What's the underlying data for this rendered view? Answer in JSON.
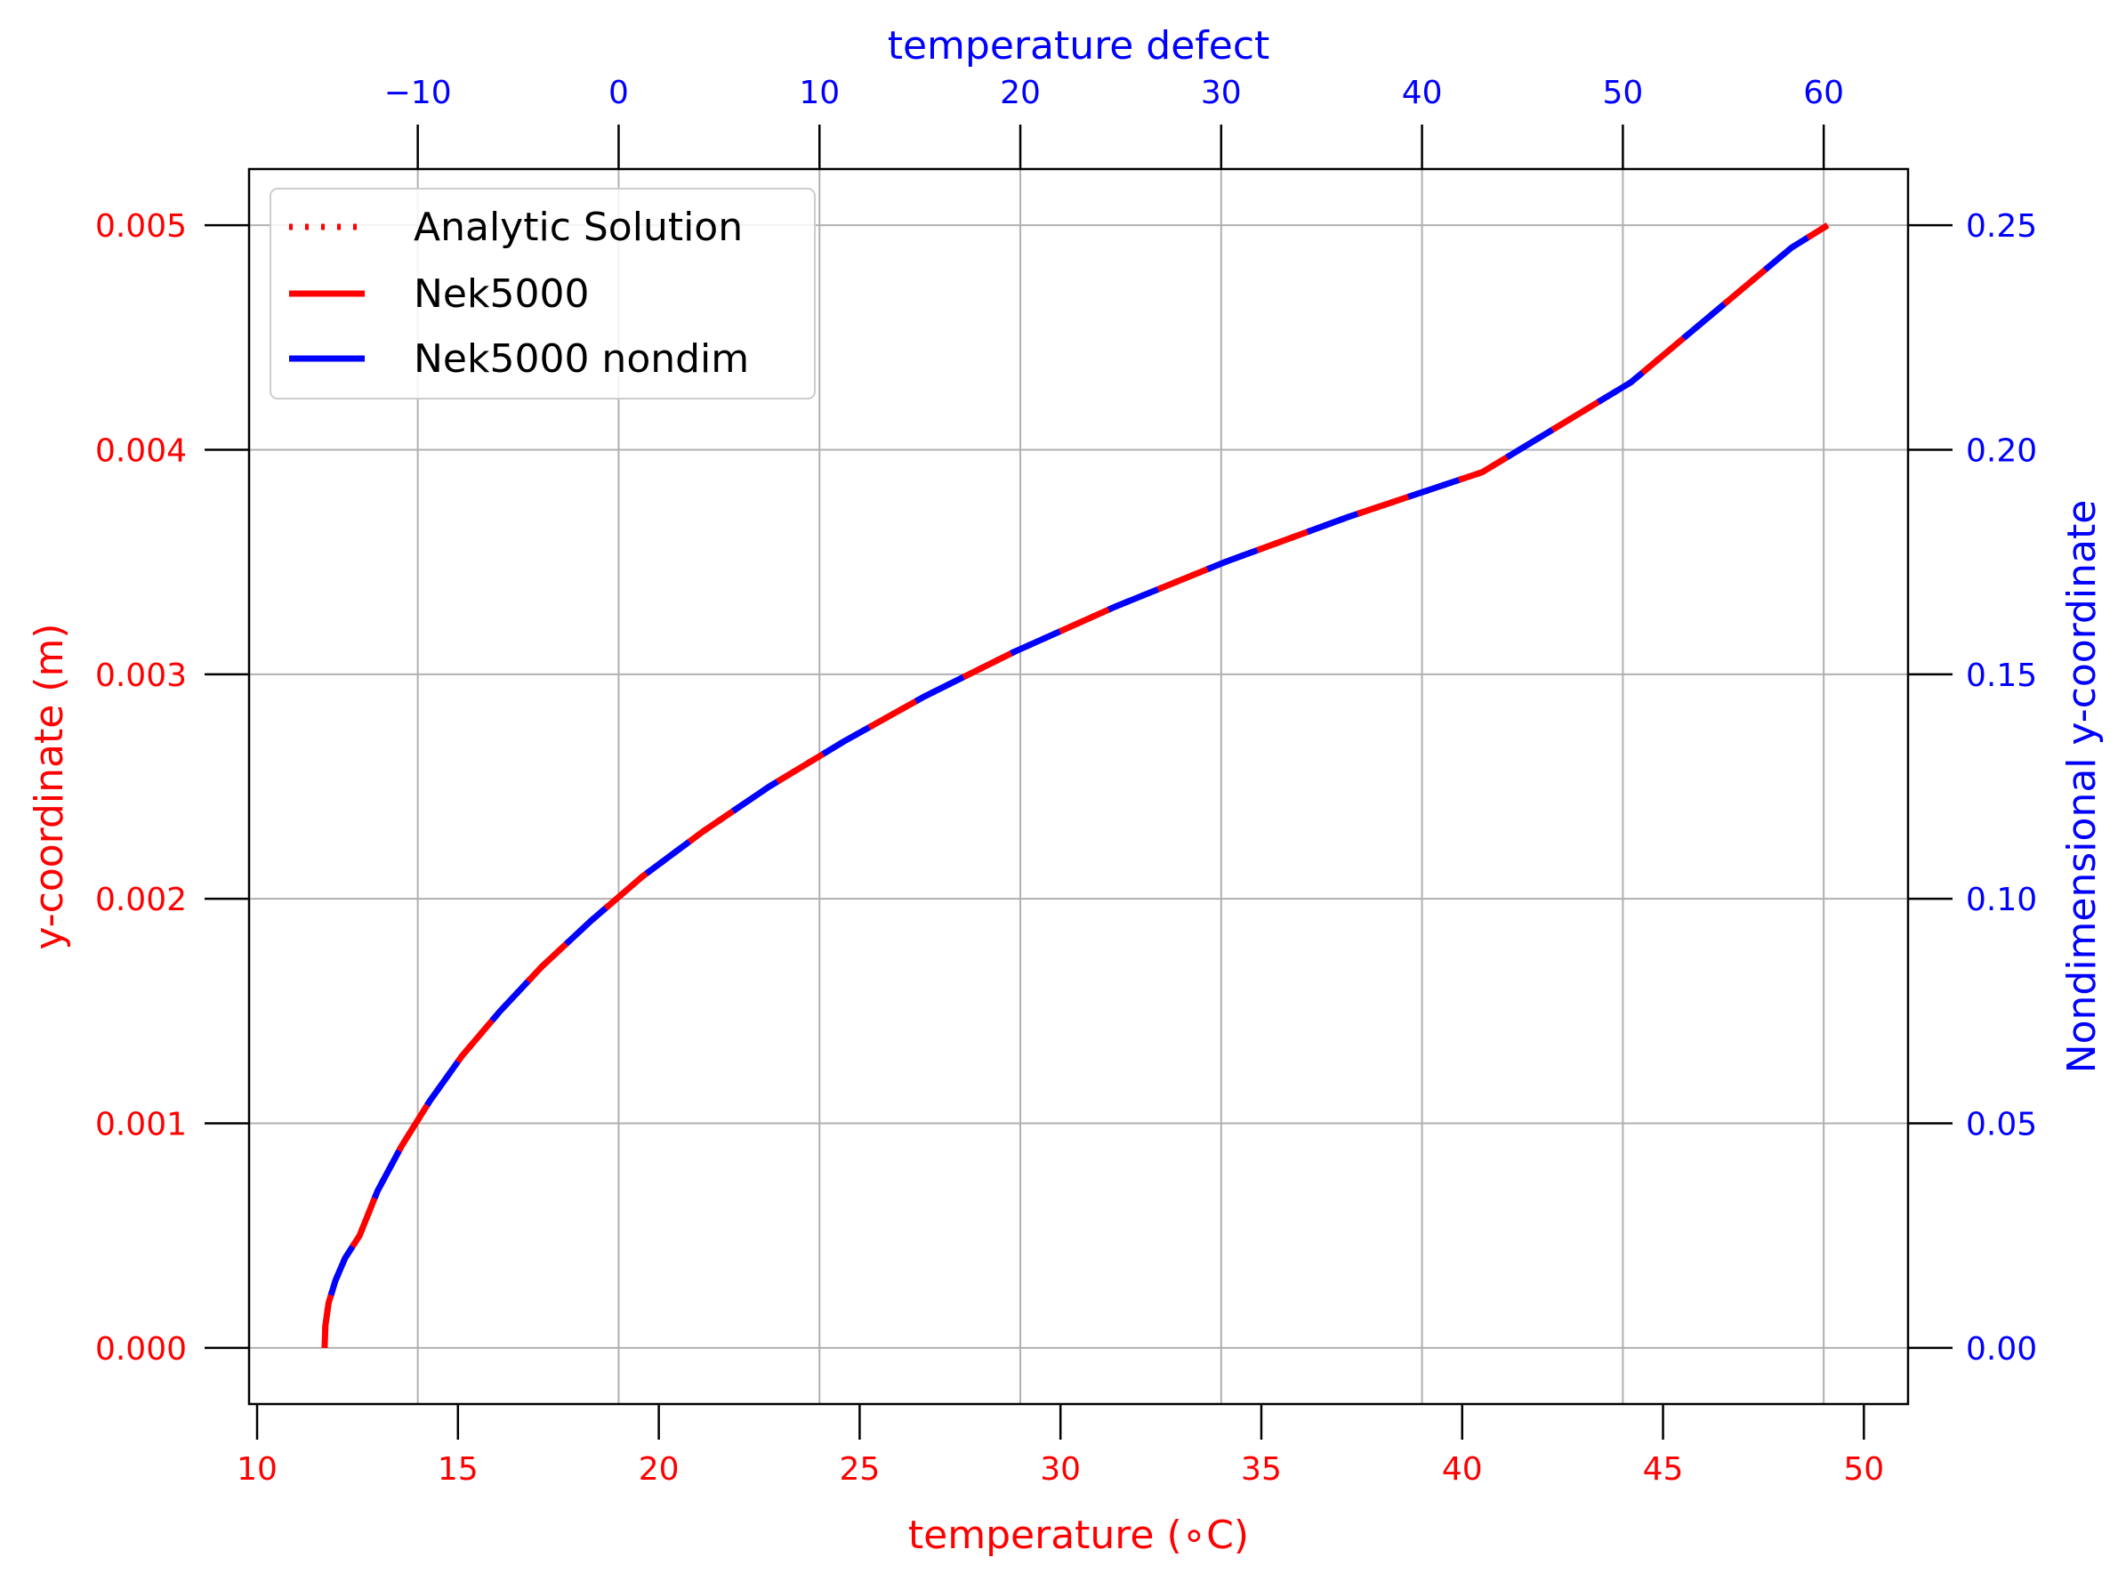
{
  "chart_data": {
    "type": "line",
    "title": "",
    "xlabel": "temperature ($^\\circ$C)",
    "xlabel_display": "temperature (∘C)",
    "ylabel": "y-coordinate (m)",
    "x2label": "temperature defect",
    "y2label": "Nondimensional y-coordinate",
    "xlim": [
      9.8,
      51.1
    ],
    "ylim": [
      -0.00025,
      0.00525
    ],
    "x2lim": [
      -18.4,
      64.2
    ],
    "y2lim": [
      -0.0125,
      0.2625
    ],
    "xticks": [
      10,
      15,
      20,
      25,
      30,
      35,
      40,
      45,
      50
    ],
    "xtick_labels": [
      "10",
      "15",
      "20",
      "25",
      "30",
      "35",
      "40",
      "45",
      "50"
    ],
    "yticks": [
      0.0,
      0.001,
      0.002,
      0.003,
      0.004,
      0.005
    ],
    "ytick_labels": [
      "0.000",
      "0.001",
      "0.002",
      "0.003",
      "0.004",
      "0.005"
    ],
    "x2ticks": [
      -10,
      0,
      10,
      20,
      30,
      40,
      50,
      60
    ],
    "x2tick_labels": [
      "−10",
      "0",
      "10",
      "20",
      "30",
      "40",
      "50",
      "60"
    ],
    "y2ticks": [
      0.0,
      0.05,
      0.1,
      0.15,
      0.2,
      0.25
    ],
    "y2tick_labels": [
      "0.00",
      "0.05",
      "0.10",
      "0.15",
      "0.20",
      "0.25"
    ],
    "grid": true,
    "legend_position": "top-left",
    "colors": {
      "left_axis": "#ff0000",
      "bottom_axis": "#ff0000",
      "top_axis": "#0000ff",
      "right_axis": "#0000ff",
      "grid": "#b0b0b0",
      "frame": "#000000"
    },
    "series": [
      {
        "name": "Analytic Solution",
        "style": "dotted",
        "color": "#ff0000",
        "x": [
          11.68,
          11.7,
          11.78,
          11.95,
          12.19,
          12.55,
          13.0,
          13.6,
          14.3,
          15.1,
          16.05,
          17.1,
          18.3,
          19.6,
          21.1,
          22.75,
          24.6,
          26.6,
          28.85,
          31.35,
          34.1,
          37.15,
          40.5,
          44.2,
          48.2,
          49.1
        ],
        "y": [
          0.0,
          0.0001,
          0.0002,
          0.0003,
          0.0004,
          0.0005,
          0.0007,
          0.0009,
          0.0011,
          0.0013,
          0.0015,
          0.0017,
          0.0019,
          0.0021,
          0.0023,
          0.0025,
          0.0027,
          0.0029,
          0.0031,
          0.0033,
          0.0035,
          0.0037,
          0.0039,
          0.0043,
          0.0049,
          0.005
        ]
      },
      {
        "name": "Nek5000",
        "style": "dashed",
        "color": "#ff0000",
        "x": [
          11.68,
          11.7,
          11.78,
          11.95,
          12.19,
          12.55,
          13.0,
          13.6,
          14.3,
          15.1,
          16.05,
          17.1,
          18.3,
          19.6,
          21.1,
          22.75,
          24.6,
          26.6,
          28.85,
          31.35,
          34.1,
          37.15,
          40.5,
          44.2,
          48.2,
          49.1
        ],
        "y": [
          0.0,
          0.0001,
          0.0002,
          0.0003,
          0.0004,
          0.0005,
          0.0007,
          0.0009,
          0.0011,
          0.0013,
          0.0015,
          0.0017,
          0.0019,
          0.0021,
          0.0023,
          0.0025,
          0.0027,
          0.0029,
          0.0031,
          0.0033,
          0.0035,
          0.0037,
          0.0039,
          0.0043,
          0.0049,
          0.005
        ]
      },
      {
        "name": "Nek5000 nondim",
        "style": "dashed",
        "color": "#0000ff",
        "x": [
          11.68,
          11.7,
          11.78,
          11.95,
          12.19,
          12.55,
          13.0,
          13.6,
          14.3,
          15.1,
          16.05,
          17.1,
          18.3,
          19.6,
          21.1,
          22.75,
          24.6,
          26.6,
          28.85,
          31.35,
          34.1,
          37.15,
          40.5,
          44.2,
          48.2,
          49.1
        ],
        "y": [
          0.0,
          0.0001,
          0.0002,
          0.0003,
          0.0004,
          0.0005,
          0.0007,
          0.0009,
          0.0011,
          0.0013,
          0.0015,
          0.0017,
          0.0019,
          0.0021,
          0.0023,
          0.0025,
          0.0027,
          0.0029,
          0.0031,
          0.0033,
          0.0035,
          0.0037,
          0.0039,
          0.0043,
          0.0049,
          0.005
        ]
      }
    ]
  }
}
